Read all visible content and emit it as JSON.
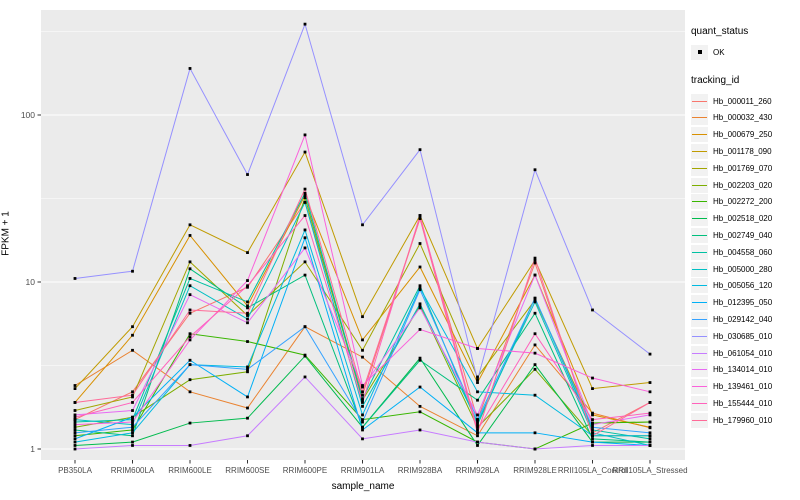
{
  "figure": {
    "panel_background": "#EBEBEB",
    "grid_color": "#FFFFFF",
    "tick_label_color": "#4D4D4D",
    "tick_mark_color": "#333333",
    "marker_color": "#000000",
    "legend_key_background": "#F2F2F2"
  },
  "axes": {
    "x_title": "sample_name",
    "y_title": "FPKM + 1"
  },
  "legend": {
    "quant_status_title": "quant_status",
    "quant_status_entries": [
      {
        "label": "OK",
        "marker": "black-square"
      }
    ],
    "tracking_id_title": "tracking_id"
  },
  "chart_data": {
    "type": "line",
    "title": "",
    "xlabel": "sample_name",
    "ylabel": "FPKM + 1",
    "y_scale": "log10",
    "y_ticks": [
      1,
      10,
      100
    ],
    "y_minor_gridlines": [
      3.1623,
      31.623,
      316.23
    ],
    "ylim": [
      0.85,
      430
    ],
    "grid": true,
    "legend_position": "right",
    "point_marker": "small-black-square",
    "categories": [
      "PB350LA",
      "RRIM600LA",
      "RRIM600LE",
      "RRIM600SE",
      "RRIM600PE",
      "RRIM901LA",
      "RRIM928BA",
      "RRIM928LA",
      "RRIM928LE",
      "RRII105LA_Control",
      "RRII105LA_Stressed"
    ],
    "series": [
      {
        "name": "Hb_000011_260",
        "color": "#F8766D",
        "values": [
          1.5,
          2.2,
          6.5,
          9.3,
          30,
          2.1,
          24,
          1.5,
          13,
          1.25,
          1.9
        ]
      },
      {
        "name": "Hb_000032_430",
        "color": "#EA8331",
        "values": [
          2.4,
          3.9,
          2.2,
          1.76,
          5.4,
          3.55,
          1.8,
          1.2,
          4.2,
          1.64,
          1.34
        ]
      },
      {
        "name": "Hb_000679_250",
        "color": "#D89000",
        "values": [
          1.9,
          4.8,
          19,
          7.2,
          33,
          4.5,
          12.3,
          2.5,
          11,
          1.6,
          1.35
        ]
      },
      {
        "name": "Hb_001178_090",
        "color": "#C09B00",
        "values": [
          2.3,
          5.4,
          22,
          15,
          60,
          6.2,
          25,
          4.0,
          13.5,
          2.3,
          2.5
        ]
      },
      {
        "name": "Hb_001769_070",
        "color": "#A3A500",
        "values": [
          1.7,
          2.05,
          13.2,
          6.3,
          13.2,
          3.9,
          17,
          2.7,
          7.8,
          1.43,
          1.45
        ]
      },
      {
        "name": "Hb_002203_020",
        "color": "#7CAE00",
        "values": [
          1.35,
          1.55,
          2.6,
          2.9,
          32,
          1.96,
          7.2,
          1.35,
          3.0,
          1.2,
          1.2
        ]
      },
      {
        "name": "Hb_002272_200",
        "color": "#39B600",
        "values": [
          1.2,
          1.3,
          4.9,
          4.4,
          3.65,
          1.5,
          1.67,
          1.1,
          1.0,
          1.43,
          1.45
        ]
      },
      {
        "name": "Hb_002518_020",
        "color": "#00BB4E",
        "values": [
          1.05,
          1.1,
          1.43,
          1.53,
          3.6,
          1.35,
          3.5,
          1.05,
          3.2,
          1.1,
          1.1
        ]
      },
      {
        "name": "Hb_002749_040",
        "color": "#00BF7D",
        "values": [
          1.3,
          1.2,
          12,
          7.0,
          11,
          1.35,
          3.4,
          1.96,
          6.5,
          1.15,
          1.1
        ]
      },
      {
        "name": "Hb_004558_060",
        "color": "#00C1A3",
        "values": [
          1.45,
          1.5,
          10.5,
          7.6,
          34,
          2.0,
          9.5,
          1.4,
          8.0,
          1.3,
          1.15
        ]
      },
      {
        "name": "Hb_005000_280",
        "color": "#00BFC4",
        "values": [
          1.5,
          1.4,
          9.5,
          6.0,
          30,
          1.8,
          7.4,
          1.45,
          7.6,
          1.25,
          1.05
        ]
      },
      {
        "name": "Hb_005056_120",
        "color": "#00BAE0",
        "values": [
          1.1,
          1.25,
          3.2,
          3.1,
          20.5,
          1.6,
          9.2,
          2.2,
          2.1,
          1.2,
          1.2
        ]
      },
      {
        "name": "Hb_012395_050",
        "color": "#00B0F6",
        "values": [
          1.15,
          1.55,
          3.4,
          2.05,
          18.4,
          1.3,
          2.35,
          1.25,
          1.25,
          1.1,
          1.05
        ]
      },
      {
        "name": "Hb_029142_040",
        "color": "#35A2FF",
        "values": [
          1.25,
          1.35,
          3.2,
          3.0,
          5.4,
          1.45,
          9.0,
          1.5,
          8.0,
          1.35,
          1.25
        ]
      },
      {
        "name": "Hb_030685_010",
        "color": "#9590FF",
        "values": [
          10.5,
          11.6,
          190,
          44,
          350,
          22,
          62,
          2.6,
          47,
          6.8,
          3.7
        ]
      },
      {
        "name": "Hb_061054_010",
        "color": "#C77CFF",
        "values": [
          1.0,
          1.05,
          1.05,
          1.2,
          2.7,
          1.15,
          1.3,
          1.1,
          1.0,
          1.05,
          1.05
        ]
      },
      {
        "name": "Hb_134014_010",
        "color": "#E76BF3",
        "values": [
          1.6,
          1.7,
          8.4,
          5.7,
          16,
          2.35,
          7.0,
          1.6,
          11,
          1.4,
          1.6
        ]
      },
      {
        "name": "Hb_139461_010",
        "color": "#FA62DB",
        "values": [
          1.4,
          1.45,
          4.5,
          10.2,
          76,
          2.4,
          5.2,
          4.0,
          3.75,
          2.66,
          2.2
        ]
      },
      {
        "name": "Hb_155444_010",
        "color": "#FF62BC",
        "values": [
          1.55,
          1.9,
          4.7,
          9.5,
          25,
          1.9,
          25,
          1.3,
          4.9,
          1.5,
          1.64
        ]
      },
      {
        "name": "Hb_179960_010",
        "color": "#FF6A98",
        "values": [
          1.9,
          2.1,
          6.8,
          6.5,
          36,
          2.2,
          24,
          1.25,
          13.9,
          1.2,
          1.9
        ]
      }
    ]
  }
}
